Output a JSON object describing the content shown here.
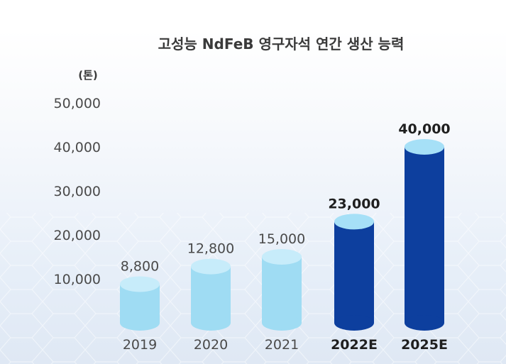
{
  "chart_data": {
    "type": "bar",
    "title": "고성능 NdFeB 영구자석 연간 생산 능력",
    "unit_label": "(톤)",
    "categories": [
      "2019",
      "2020",
      "2021",
      "2022E",
      "2025E"
    ],
    "values": [
      8800,
      12800,
      15000,
      23000,
      40000
    ],
    "value_labels": [
      "8,800",
      "12,800",
      "15,000",
      "23,000",
      "40,000"
    ],
    "projected": [
      false,
      false,
      false,
      true,
      true
    ],
    "yticks": [
      "10,000",
      "20,000",
      "30,000",
      "40,000",
      "50,000"
    ],
    "ytick_values": [
      10000,
      20000,
      30000,
      40000,
      50000
    ],
    "xlabel": "",
    "ylabel": "",
    "grid": false,
    "colors": {
      "actual_body": "#9fdcf3",
      "actual_top": "#c7ecfa",
      "projected_body": "#0d3f9e",
      "projected_top": "#a6e0f7"
    }
  }
}
